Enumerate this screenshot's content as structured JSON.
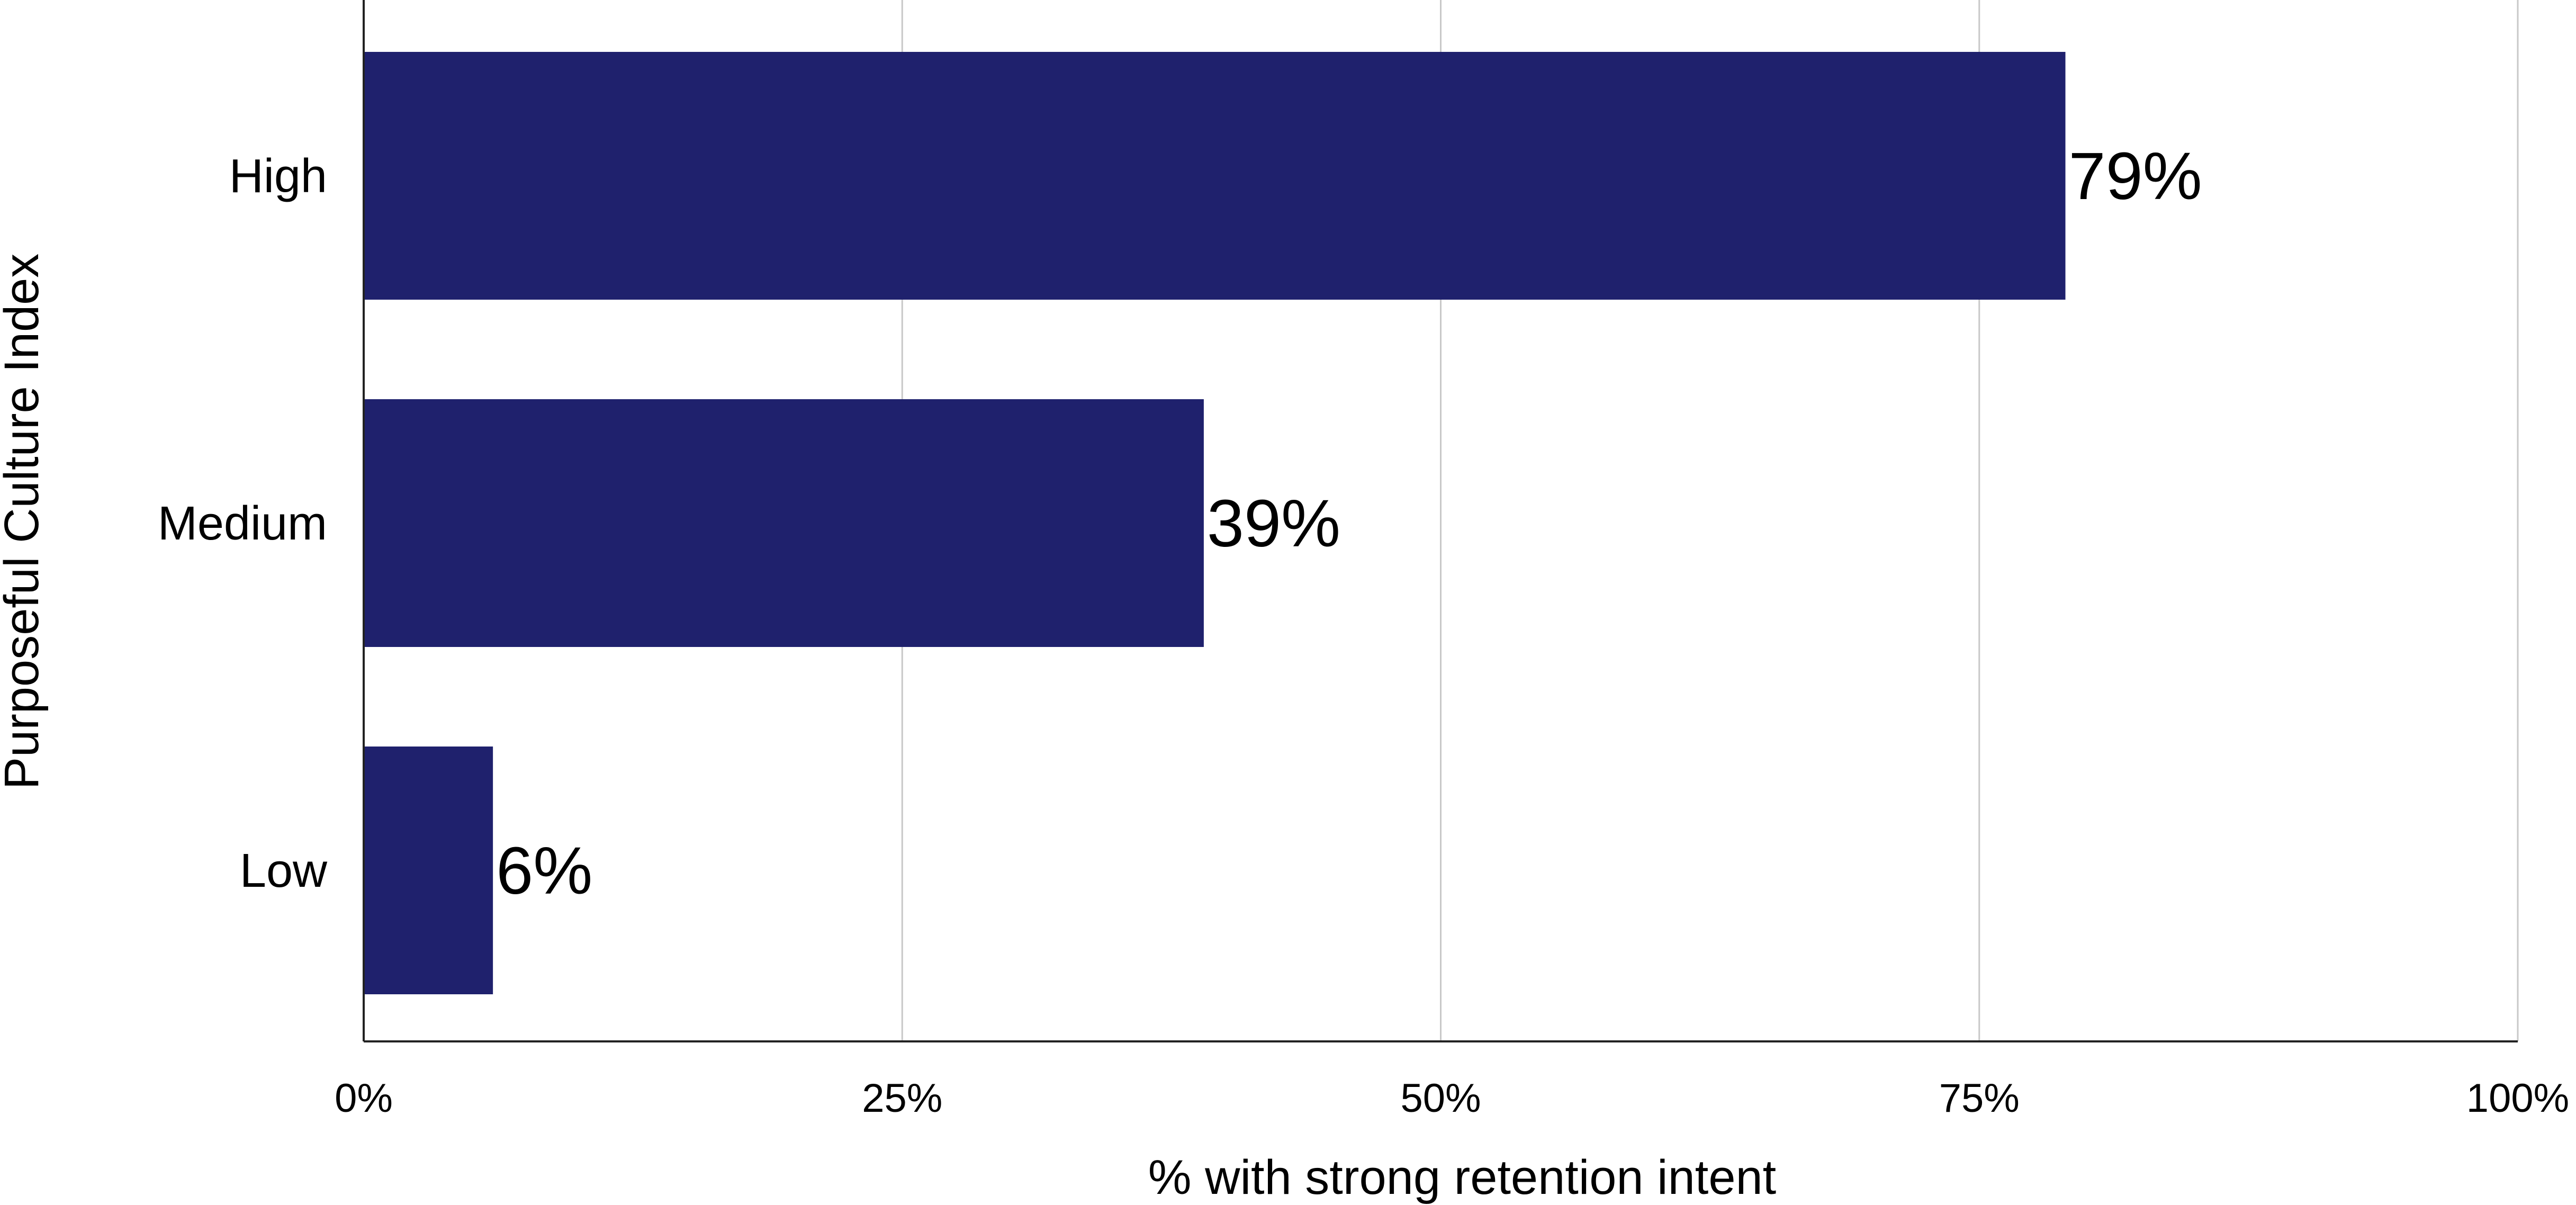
{
  "chart_data": {
    "type": "bar",
    "orientation": "horizontal",
    "categories": [
      "High",
      "Medium",
      "Low"
    ],
    "values": [
      79,
      39,
      6
    ],
    "data_labels": [
      "79%",
      "39%",
      "6%"
    ],
    "xlabel": "% with strong retention intent",
    "ylabel": "Purposeful Culture Index",
    "xlim": [
      0,
      100
    ],
    "x_ticks": [
      0,
      25,
      50,
      75,
      100
    ],
    "x_tick_labels": [
      "0%",
      "25%",
      "50%",
      "75%",
      "100%"
    ],
    "grid": true,
    "legend": "none",
    "bar_color": "#1f216d",
    "grid_color": "#c8c8c8",
    "axis_color": "#222222"
  }
}
